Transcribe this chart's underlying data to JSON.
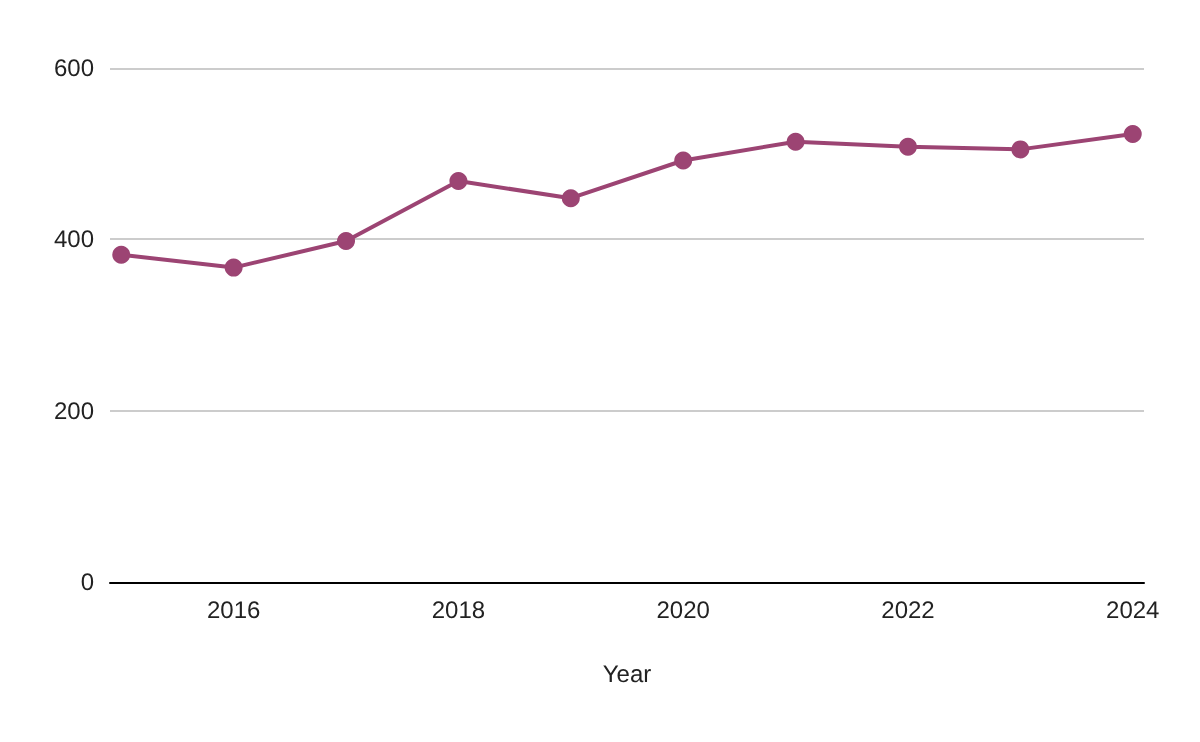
{
  "chart_data": {
    "type": "line",
    "xlabel": "Year",
    "x": [
      2015,
      2016,
      2017,
      2018,
      2019,
      2020,
      2021,
      2022,
      2023,
      2024
    ],
    "series": [
      {
        "color": "#9c4473",
        "values": [
          382,
          367,
          398,
          468,
          448,
          492,
          514,
          508,
          505,
          523
        ]
      }
    ],
    "xlim": [
      2014.9,
      2024.1
    ],
    "xticks": [
      2016,
      2018,
      2020,
      2022,
      2024
    ],
    "ylim": [
      0,
      600
    ],
    "yticks": [
      0,
      200,
      400,
      600
    ],
    "grid": "y",
    "marker": "circle",
    "line_style": "solid"
  }
}
